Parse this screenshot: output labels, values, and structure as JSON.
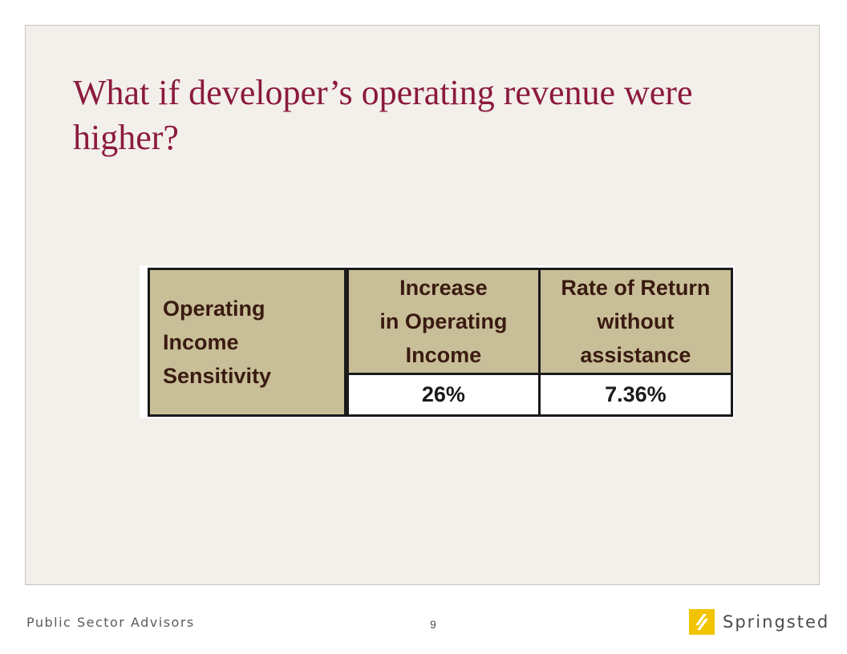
{
  "slide": {
    "title": "What if developer’s operating revenue were higher?"
  },
  "table": {
    "row_header": "Operating\nIncome\nSensitivity",
    "columns": [
      {
        "header": "Increase\nin Operating\nIncome",
        "value": "26%"
      },
      {
        "header": "Rate of Return\nwithout\nassistance",
        "value": "7.36%"
      }
    ]
  },
  "footer": {
    "left_text": "Public Sector Advisors",
    "page_number": "9",
    "logo_text": "Springsted"
  },
  "colors": {
    "title": "#8b1a3c",
    "table_header_bg": "#c8bf98",
    "logo_yellow": "#f2c400"
  },
  "icons": {
    "logo": "springsted-logo-icon"
  }
}
